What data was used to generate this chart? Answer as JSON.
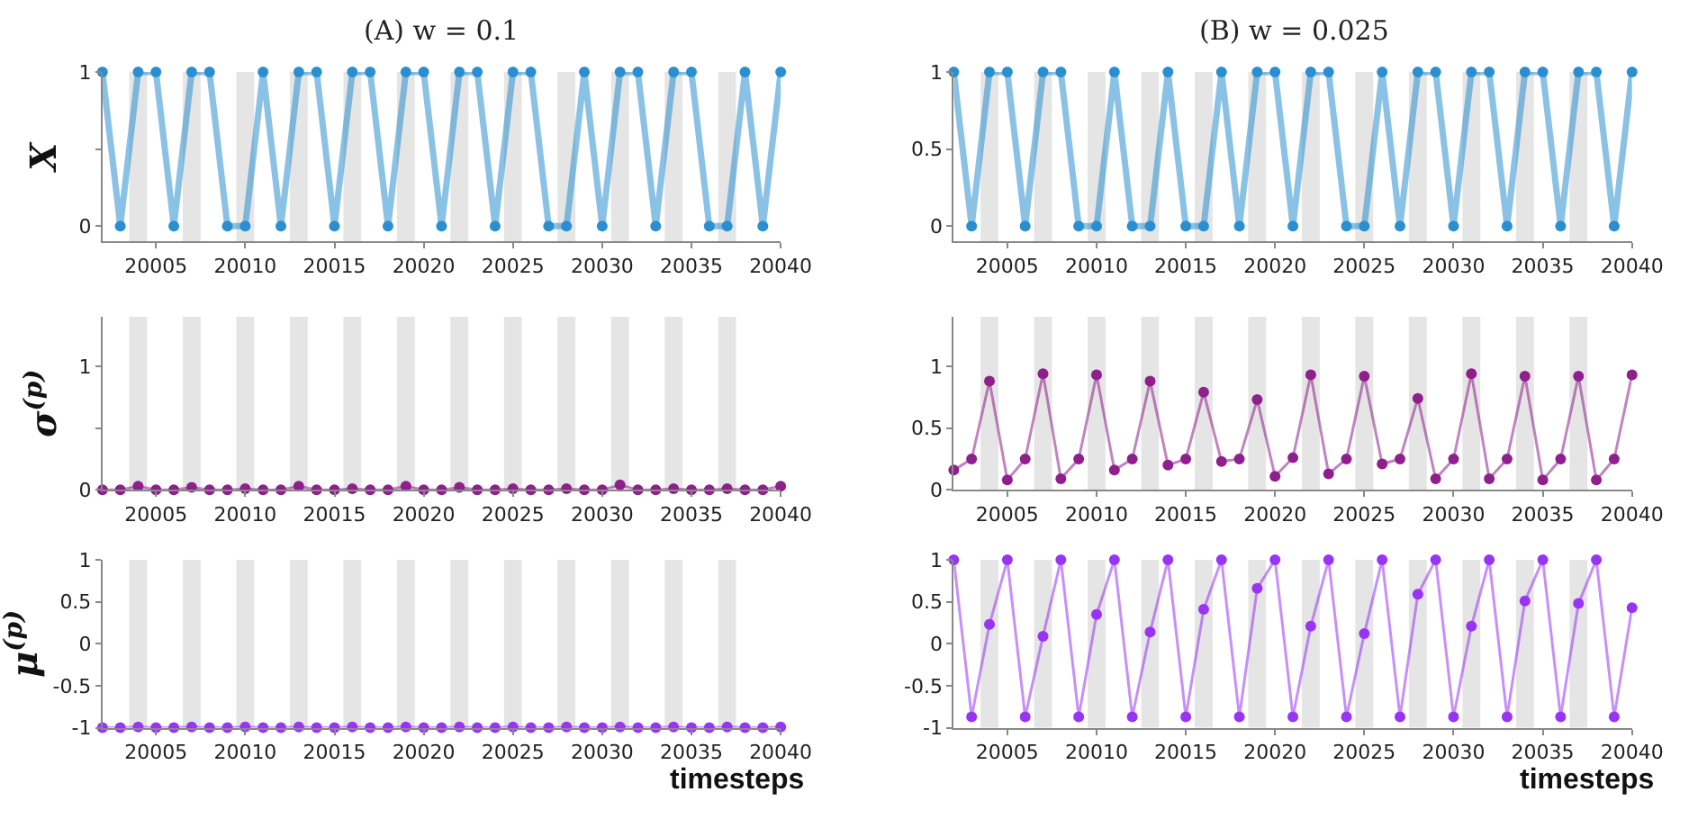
{
  "chart_data": [
    {
      "type": "line",
      "title": "(A) w = 0.1",
      "ylabel": "X",
      "x": [
        20002,
        20003,
        20004,
        20005,
        20006,
        20007,
        20008,
        20009,
        20010,
        20011,
        20012,
        20013,
        20014,
        20015,
        20016,
        20017,
        20018,
        20019,
        20020,
        20021,
        20022,
        20023,
        20024,
        20025,
        20026,
        20027,
        20028,
        20029,
        20030,
        20031,
        20032,
        20033,
        20034,
        20035,
        20036,
        20037,
        20038,
        20039,
        20040
      ],
      "series": [
        {
          "color": "#2a8fd0",
          "values": [
            1,
            0,
            1,
            1,
            0,
            1,
            1,
            0,
            0,
            1,
            0,
            1,
            1,
            0,
            1,
            1,
            0,
            1,
            1,
            0,
            1,
            1,
            0,
            1,
            1,
            0,
            0,
            1,
            0,
            1,
            1,
            0,
            1,
            1,
            0,
            0,
            1,
            0,
            1
          ]
        }
      ],
      "xlim": [
        20002,
        20040
      ],
      "xticks": [
        20005,
        20010,
        20015,
        20020,
        20025,
        20030,
        20035,
        20040
      ],
      "ylim": [
        -0.1,
        1
      ],
      "yticks": [
        0,
        {
          "value": 0.5,
          "label": null
        },
        1
      ],
      "marker": "circle",
      "grid": false,
      "legend": false,
      "bands": [
        {
          "axis": "x",
          "from": 20003.5,
          "to": 20004.5,
          "color": "#e5e5e5"
        },
        {
          "axis": "x",
          "from": 20006.5,
          "to": 20007.5,
          "color": "#e5e5e5"
        },
        {
          "axis": "x",
          "from": 20009.5,
          "to": 20010.5,
          "color": "#e5e5e5"
        },
        {
          "axis": "x",
          "from": 20012.5,
          "to": 20013.5,
          "color": "#e5e5e5"
        },
        {
          "axis": "x",
          "from": 20015.5,
          "to": 20016.5,
          "color": "#e5e5e5"
        },
        {
          "axis": "x",
          "from": 20018.5,
          "to": 20019.5,
          "color": "#e5e5e5"
        },
        {
          "axis": "x",
          "from": 20021.5,
          "to": 20022.5,
          "color": "#e5e5e5"
        },
        {
          "axis": "x",
          "from": 20024.5,
          "to": 20025.5,
          "color": "#e5e5e5"
        },
        {
          "axis": "x",
          "from": 20027.5,
          "to": 20028.5,
          "color": "#e5e5e5"
        },
        {
          "axis": "x",
          "from": 20030.5,
          "to": 20031.5,
          "color": "#e5e5e5"
        },
        {
          "axis": "x",
          "from": 20033.5,
          "to": 20034.5,
          "color": "#e5e5e5"
        },
        {
          "axis": "x",
          "from": 20036.5,
          "to": 20037.5,
          "color": "#e5e5e5"
        }
      ]
    },
    {
      "type": "line",
      "title": "(B) w = 0.025",
      "x": [
        20002,
        20003,
        20004,
        20005,
        20006,
        20007,
        20008,
        20009,
        20010,
        20011,
        20012,
        20013,
        20014,
        20015,
        20016,
        20017,
        20018,
        20019,
        20020,
        20021,
        20022,
        20023,
        20024,
        20025,
        20026,
        20027,
        20028,
        20029,
        20030,
        20031,
        20032,
        20033,
        20034,
        20035,
        20036,
        20037,
        20038,
        20039,
        20040
      ],
      "series": [
        {
          "color": "#2a8fd0",
          "values": [
            1,
            0,
            1,
            1,
            0,
            1,
            1,
            0,
            0,
            1,
            0,
            0,
            1,
            0,
            0,
            1,
            0,
            1,
            1,
            0,
            1,
            1,
            0,
            0,
            1,
            0,
            1,
            1,
            0,
            1,
            1,
            0,
            1,
            1,
            0,
            1,
            1,
            0,
            1
          ]
        }
      ],
      "xlim": [
        20002,
        20040
      ],
      "xticks": [
        20005,
        20010,
        20015,
        20020,
        20025,
        20030,
        20035,
        20040
      ],
      "ylim": [
        -0.1,
        1
      ],
      "yticks": [
        0,
        0.5,
        1
      ],
      "marker": "circle",
      "grid": false,
      "legend": false,
      "bands": [
        {
          "axis": "x",
          "from": 20003.5,
          "to": 20004.5,
          "color": "#e5e5e5"
        },
        {
          "axis": "x",
          "from": 20006.5,
          "to": 20007.5,
          "color": "#e5e5e5"
        },
        {
          "axis": "x",
          "from": 20009.5,
          "to": 20010.5,
          "color": "#e5e5e5"
        },
        {
          "axis": "x",
          "from": 20012.5,
          "to": 20013.5,
          "color": "#e5e5e5"
        },
        {
          "axis": "x",
          "from": 20015.5,
          "to": 20016.5,
          "color": "#e5e5e5"
        },
        {
          "axis": "x",
          "from": 20018.5,
          "to": 20019.5,
          "color": "#e5e5e5"
        },
        {
          "axis": "x",
          "from": 20021.5,
          "to": 20022.5,
          "color": "#e5e5e5"
        },
        {
          "axis": "x",
          "from": 20024.5,
          "to": 20025.5,
          "color": "#e5e5e5"
        },
        {
          "axis": "x",
          "from": 20027.5,
          "to": 20028.5,
          "color": "#e5e5e5"
        },
        {
          "axis": "x",
          "from": 20030.5,
          "to": 20031.5,
          "color": "#e5e5e5"
        },
        {
          "axis": "x",
          "from": 20033.5,
          "to": 20034.5,
          "color": "#e5e5e5"
        },
        {
          "axis": "x",
          "from": 20036.5,
          "to": 20037.5,
          "color": "#e5e5e5"
        }
      ]
    },
    {
      "type": "line",
      "ylabel": "σ$^{(p)}$",
      "x": [
        20002,
        20003,
        20004,
        20005,
        20006,
        20007,
        20008,
        20009,
        20010,
        20011,
        20012,
        20013,
        20014,
        20015,
        20016,
        20017,
        20018,
        20019,
        20020,
        20021,
        20022,
        20023,
        20024,
        20025,
        20026,
        20027,
        20028,
        20029,
        20030,
        20031,
        20032,
        20033,
        20034,
        20035,
        20036,
        20037,
        20038,
        20039,
        20040
      ],
      "series": [
        {
          "color": "#8e1f8c",
          "values": [
            0,
            0,
            0.03,
            0,
            0,
            0.02,
            0,
            0,
            0.01,
            0,
            0,
            0.03,
            0,
            0,
            0.01,
            0,
            0,
            0.03,
            0,
            0,
            0.02,
            0,
            0,
            0.01,
            0,
            0,
            0.01,
            0,
            0,
            0.04,
            0,
            0,
            0.01,
            0,
            0,
            0.01,
            0,
            0,
            0.03
          ]
        }
      ],
      "xlim": [
        20002,
        20040
      ],
      "xticks": [
        20005,
        20010,
        20015,
        20020,
        20025,
        20030,
        20035,
        20040
      ],
      "ylim": [
        0,
        1.4
      ],
      "yticks": [
        0,
        {
          "value": 0.5,
          "label": null
        },
        1
      ],
      "marker": "circle",
      "grid": false,
      "legend": false,
      "bands": [
        {
          "axis": "x",
          "from": 20003.5,
          "to": 20004.5,
          "color": "#e5e5e5"
        },
        {
          "axis": "x",
          "from": 20006.5,
          "to": 20007.5,
          "color": "#e5e5e5"
        },
        {
          "axis": "x",
          "from": 20009.5,
          "to": 20010.5,
          "color": "#e5e5e5"
        },
        {
          "axis": "x",
          "from": 20012.5,
          "to": 20013.5,
          "color": "#e5e5e5"
        },
        {
          "axis": "x",
          "from": 20015.5,
          "to": 20016.5,
          "color": "#e5e5e5"
        },
        {
          "axis": "x",
          "from": 20018.5,
          "to": 20019.5,
          "color": "#e5e5e5"
        },
        {
          "axis": "x",
          "from": 20021.5,
          "to": 20022.5,
          "color": "#e5e5e5"
        },
        {
          "axis": "x",
          "from": 20024.5,
          "to": 20025.5,
          "color": "#e5e5e5"
        },
        {
          "axis": "x",
          "from": 20027.5,
          "to": 20028.5,
          "color": "#e5e5e5"
        },
        {
          "axis": "x",
          "from": 20030.5,
          "to": 20031.5,
          "color": "#e5e5e5"
        },
        {
          "axis": "x",
          "from": 20033.5,
          "to": 20034.5,
          "color": "#e5e5e5"
        },
        {
          "axis": "x",
          "from": 20036.5,
          "to": 20037.5,
          "color": "#e5e5e5"
        }
      ]
    },
    {
      "type": "line",
      "x": [
        20002,
        20003,
        20004,
        20005,
        20006,
        20007,
        20008,
        20009,
        20010,
        20011,
        20012,
        20013,
        20014,
        20015,
        20016,
        20017,
        20018,
        20019,
        20020,
        20021,
        20022,
        20023,
        20024,
        20025,
        20026,
        20027,
        20028,
        20029,
        20030,
        20031,
        20032,
        20033,
        20034,
        20035,
        20036,
        20037,
        20038,
        20039,
        20040
      ],
      "series": [
        {
          "color": "#8e1f8c",
          "values": [
            0.16,
            0.25,
            0.88,
            0.08,
            0.25,
            0.94,
            0.09,
            0.25,
            0.93,
            0.16,
            0.25,
            0.88,
            0.2,
            0.25,
            0.79,
            0.23,
            0.25,
            0.73,
            0.11,
            0.26,
            0.93,
            0.13,
            0.25,
            0.92,
            0.21,
            0.25,
            0.74,
            0.09,
            0.25,
            0.94,
            0.09,
            0.25,
            0.92,
            0.08,
            0.25,
            0.92,
            0.08,
            0.25,
            0.93
          ]
        }
      ],
      "xlim": [
        20002,
        20040
      ],
      "xticks": [
        20005,
        20010,
        20015,
        20020,
        20025,
        20030,
        20035,
        20040
      ],
      "ylim": [
        0,
        1.4
      ],
      "yticks": [
        0,
        0.5,
        1
      ],
      "marker": "circle",
      "grid": false,
      "legend": false,
      "bands": [
        {
          "axis": "x",
          "from": 20003.5,
          "to": 20004.5,
          "color": "#e5e5e5"
        },
        {
          "axis": "x",
          "from": 20006.5,
          "to": 20007.5,
          "color": "#e5e5e5"
        },
        {
          "axis": "x",
          "from": 20009.5,
          "to": 20010.5,
          "color": "#e5e5e5"
        },
        {
          "axis": "x",
          "from": 20012.5,
          "to": 20013.5,
          "color": "#e5e5e5"
        },
        {
          "axis": "x",
          "from": 20015.5,
          "to": 20016.5,
          "color": "#e5e5e5"
        },
        {
          "axis": "x",
          "from": 20018.5,
          "to": 20019.5,
          "color": "#e5e5e5"
        },
        {
          "axis": "x",
          "from": 20021.5,
          "to": 20022.5,
          "color": "#e5e5e5"
        },
        {
          "axis": "x",
          "from": 20024.5,
          "to": 20025.5,
          "color": "#e5e5e5"
        },
        {
          "axis": "x",
          "from": 20027.5,
          "to": 20028.5,
          "color": "#e5e5e5"
        },
        {
          "axis": "x",
          "from": 20030.5,
          "to": 20031.5,
          "color": "#e5e5e5"
        },
        {
          "axis": "x",
          "from": 20033.5,
          "to": 20034.5,
          "color": "#e5e5e5"
        },
        {
          "axis": "x",
          "from": 20036.5,
          "to": 20037.5,
          "color": "#e5e5e5"
        }
      ]
    },
    {
      "type": "line",
      "ylabel": "μ$^{(p)}$",
      "xlabel": "timesteps",
      "x": [
        20002,
        20003,
        20004,
        20005,
        20006,
        20007,
        20008,
        20009,
        20010,
        20011,
        20012,
        20013,
        20014,
        20015,
        20016,
        20017,
        20018,
        20019,
        20020,
        20021,
        20022,
        20023,
        20024,
        20025,
        20026,
        20027,
        20028,
        20029,
        20030,
        20031,
        20032,
        20033,
        20034,
        20035,
        20036,
        20037,
        20038,
        20039,
        20040
      ],
      "series": [
        {
          "color": "#9933f5",
          "values": [
            -1,
            -1,
            -0.99,
            -1,
            -1,
            -0.99,
            -1,
            -1,
            -0.99,
            -1,
            -1,
            -0.99,
            -1,
            -1,
            -0.99,
            -1,
            -1,
            -0.99,
            -1,
            -1,
            -0.99,
            -1,
            -1,
            -0.99,
            -1,
            -1,
            -0.99,
            -1,
            -1,
            -0.99,
            -1,
            -1,
            -0.99,
            -1,
            -1,
            -0.99,
            -1,
            -1,
            -0.99
          ]
        }
      ],
      "xlim": [
        20002,
        20040
      ],
      "xticks": [
        20005,
        20010,
        20015,
        20020,
        20025,
        20030,
        20035,
        20040
      ],
      "ylim": [
        -1,
        1
      ],
      "yticks": [
        -1,
        -0.5,
        0,
        0.5,
        1
      ],
      "marker": "circle",
      "grid": false,
      "legend": false,
      "bands": [
        {
          "axis": "x",
          "from": 20003.5,
          "to": 20004.5,
          "color": "#e5e5e5"
        },
        {
          "axis": "x",
          "from": 20006.5,
          "to": 20007.5,
          "color": "#e5e5e5"
        },
        {
          "axis": "x",
          "from": 20009.5,
          "to": 20010.5,
          "color": "#e5e5e5"
        },
        {
          "axis": "x",
          "from": 20012.5,
          "to": 20013.5,
          "color": "#e5e5e5"
        },
        {
          "axis": "x",
          "from": 20015.5,
          "to": 20016.5,
          "color": "#e5e5e5"
        },
        {
          "axis": "x",
          "from": 20018.5,
          "to": 20019.5,
          "color": "#e5e5e5"
        },
        {
          "axis": "x",
          "from": 20021.5,
          "to": 20022.5,
          "color": "#e5e5e5"
        },
        {
          "axis": "x",
          "from": 20024.5,
          "to": 20025.5,
          "color": "#e5e5e5"
        },
        {
          "axis": "x",
          "from": 20027.5,
          "to": 20028.5,
          "color": "#e5e5e5"
        },
        {
          "axis": "x",
          "from": 20030.5,
          "to": 20031.5,
          "color": "#e5e5e5"
        },
        {
          "axis": "x",
          "from": 20033.5,
          "to": 20034.5,
          "color": "#e5e5e5"
        },
        {
          "axis": "x",
          "from": 20036.5,
          "to": 20037.5,
          "color": "#e5e5e5"
        }
      ]
    },
    {
      "type": "line",
      "xlabel": "timesteps",
      "x": [
        20002,
        20003,
        20004,
        20005,
        20006,
        20007,
        20008,
        20009,
        20010,
        20011,
        20012,
        20013,
        20014,
        20015,
        20016,
        20017,
        20018,
        20019,
        20020,
        20021,
        20022,
        20023,
        20024,
        20025,
        20026,
        20027,
        20028,
        20029,
        20030,
        20031,
        20032,
        20033,
        20034,
        20035,
        20036,
        20037,
        20038,
        20039,
        20040
      ],
      "series": [
        {
          "color": "#9933f5",
          "values": [
            1,
            -0.87,
            0.23,
            1,
            -0.87,
            0.09,
            1,
            -0.87,
            0.35,
            1,
            -0.87,
            0.14,
            1,
            -0.87,
            0.41,
            1,
            -0.87,
            0.66,
            1,
            -0.87,
            0.21,
            1,
            -0.87,
            0.12,
            1,
            -0.87,
            0.59,
            1,
            -0.87,
            0.21,
            1,
            -0.87,
            0.51,
            1,
            -0.87,
            0.48,
            1,
            -0.87,
            0.43
          ]
        }
      ],
      "xlim": [
        20002,
        20040
      ],
      "xticks": [
        20005,
        20010,
        20015,
        20020,
        20025,
        20030,
        20035,
        20040
      ],
      "ylim": [
        -1,
        1
      ],
      "yticks": [
        -1,
        -0.5,
        0,
        0.5,
        1
      ],
      "marker": "circle",
      "grid": false,
      "legend": false,
      "bands": [
        {
          "axis": "x",
          "from": 20003.5,
          "to": 20004.5,
          "color": "#e5e5e5"
        },
        {
          "axis": "x",
          "from": 20006.5,
          "to": 20007.5,
          "color": "#e5e5e5"
        },
        {
          "axis": "x",
          "from": 20009.5,
          "to": 20010.5,
          "color": "#e5e5e5"
        },
        {
          "axis": "x",
          "from": 20012.5,
          "to": 20013.5,
          "color": "#e5e5e5"
        },
        {
          "axis": "x",
          "from": 20015.5,
          "to": 20016.5,
          "color": "#e5e5e5"
        },
        {
          "axis": "x",
          "from": 20018.5,
          "to": 20019.5,
          "color": "#e5e5e5"
        },
        {
          "axis": "x",
          "from": 20021.5,
          "to": 20022.5,
          "color": "#e5e5e5"
        },
        {
          "axis": "x",
          "from": 20024.5,
          "to": 20025.5,
          "color": "#e5e5e5"
        },
        {
          "axis": "x",
          "from": 20027.5,
          "to": 20028.5,
          "color": "#e5e5e5"
        },
        {
          "axis": "x",
          "from": 20030.5,
          "to": 20031.5,
          "color": "#e5e5e5"
        },
        {
          "axis": "x",
          "from": 20033.5,
          "to": 20034.5,
          "color": "#e5e5e5"
        },
        {
          "axis": "x",
          "from": 20036.5,
          "to": 20037.5,
          "color": "#e5e5e5"
        }
      ]
    }
  ]
}
